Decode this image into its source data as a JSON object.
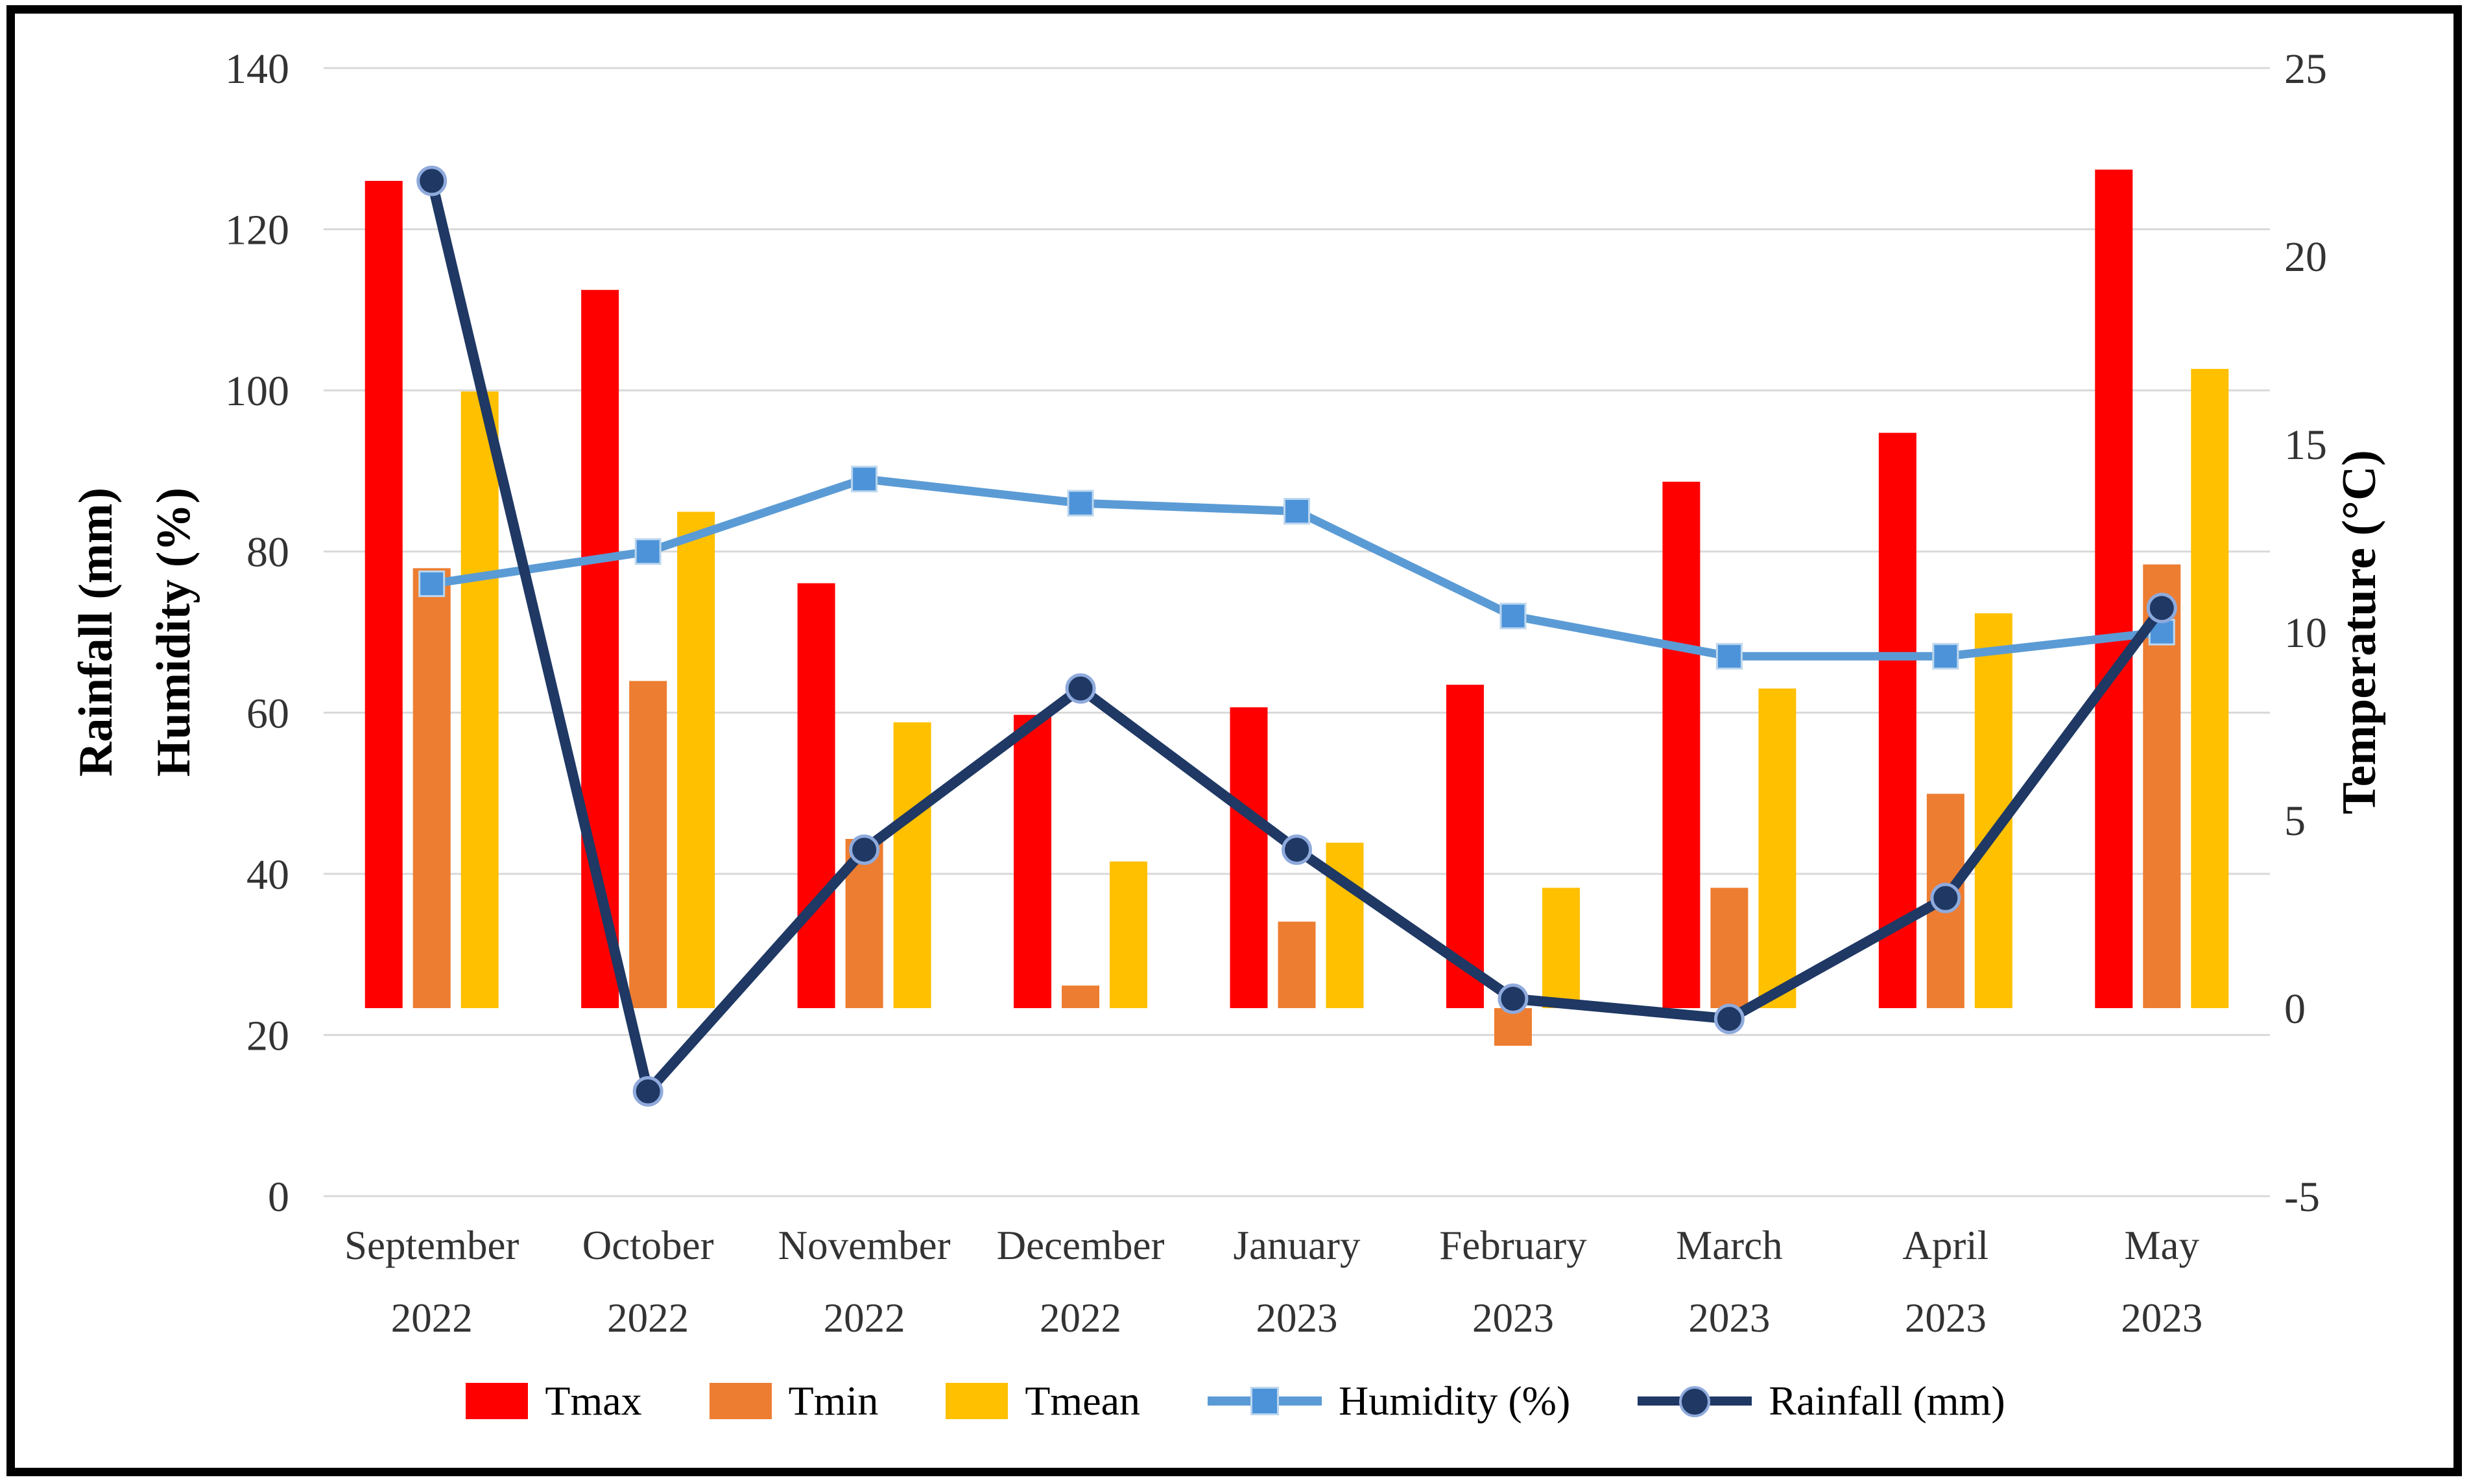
{
  "figure": {
    "background": "#ffffff",
    "border_color": "#000000",
    "title": ""
  },
  "chart_data": {
    "type": "combo-bar-line",
    "categories": [
      {
        "month": "September",
        "year": "2022"
      },
      {
        "month": "October",
        "year": "2022"
      },
      {
        "month": "November",
        "year": "2022"
      },
      {
        "month": "December",
        "year": "2022"
      },
      {
        "month": "January",
        "year": "2023"
      },
      {
        "month": "February",
        "year": "2023"
      },
      {
        "month": "March",
        "year": "2023"
      },
      {
        "month": "April",
        "year": "2023"
      },
      {
        "month": "May",
        "year": "2023"
      }
    ],
    "bar_series": [
      {
        "name": "Tmax",
        "color": "#FF0000",
        "axis": "right",
        "values": [
          22.0,
          19.1,
          11.3,
          7.8,
          8.0,
          8.6,
          14.0,
          15.3,
          22.3
        ]
      },
      {
        "name": "Tmin",
        "color": "#ED7D31",
        "axis": "right",
        "values": [
          11.7,
          8.7,
          4.5,
          0.6,
          2.3,
          -1.0,
          3.2,
          5.7,
          11.8
        ]
      },
      {
        "name": "Tmean",
        "color": "#FFC000",
        "axis": "right",
        "values": [
          16.4,
          13.2,
          7.6,
          3.9,
          4.4,
          3.2,
          8.5,
          10.5,
          17.0
        ]
      }
    ],
    "line_series": [
      {
        "name": "Humidity (%)",
        "color": "#5B9BD5",
        "marker": "square",
        "marker_color": "#4D93D9",
        "marker_outline": "#BDD7EE",
        "axis": "left",
        "values": [
          76,
          80,
          89,
          86,
          85,
          72,
          67,
          67,
          70
        ]
      },
      {
        "name": "Rainfall (mm)",
        "color": "#1F3864",
        "marker": "circle",
        "marker_color": "#1F3864",
        "marker_outline": "#8FAADC",
        "axis": "left",
        "values": [
          126,
          13,
          43,
          63,
          43,
          24.5,
          22,
          37,
          73
        ]
      }
    ],
    "left_axis": {
      "title_line1": "Rainfall (mm)",
      "title_line2": "Humidity (%)",
      "min": 0,
      "max": 140,
      "step": 20,
      "tick_labels": [
        "0",
        "20",
        "40",
        "60",
        "80",
        "100",
        "120",
        "140"
      ]
    },
    "right_axis": {
      "title": "Temperature (°C)",
      "min": -5,
      "max": 25,
      "step": 5,
      "tick_labels": [
        "-5",
        "0",
        "5",
        "10",
        "15",
        "20",
        "25"
      ]
    },
    "grid": "horizontal",
    "gridline_color": "#D9D9D9",
    "text_color": "#333333",
    "legend_position": "bottom"
  },
  "legend": {
    "items": [
      {
        "label": "Tmax",
        "swatch": "bar",
        "series": "Tmax"
      },
      {
        "label": "Tmin",
        "swatch": "bar",
        "series": "Tmin"
      },
      {
        "label": "Tmean",
        "swatch": "bar",
        "series": "Tmean"
      },
      {
        "label": "Humidity (%)",
        "swatch": "line-square",
        "series": "Humidity (%)"
      },
      {
        "label": "Rainfall (mm)",
        "swatch": "line-circle",
        "series": "Rainfall (mm)"
      }
    ]
  }
}
